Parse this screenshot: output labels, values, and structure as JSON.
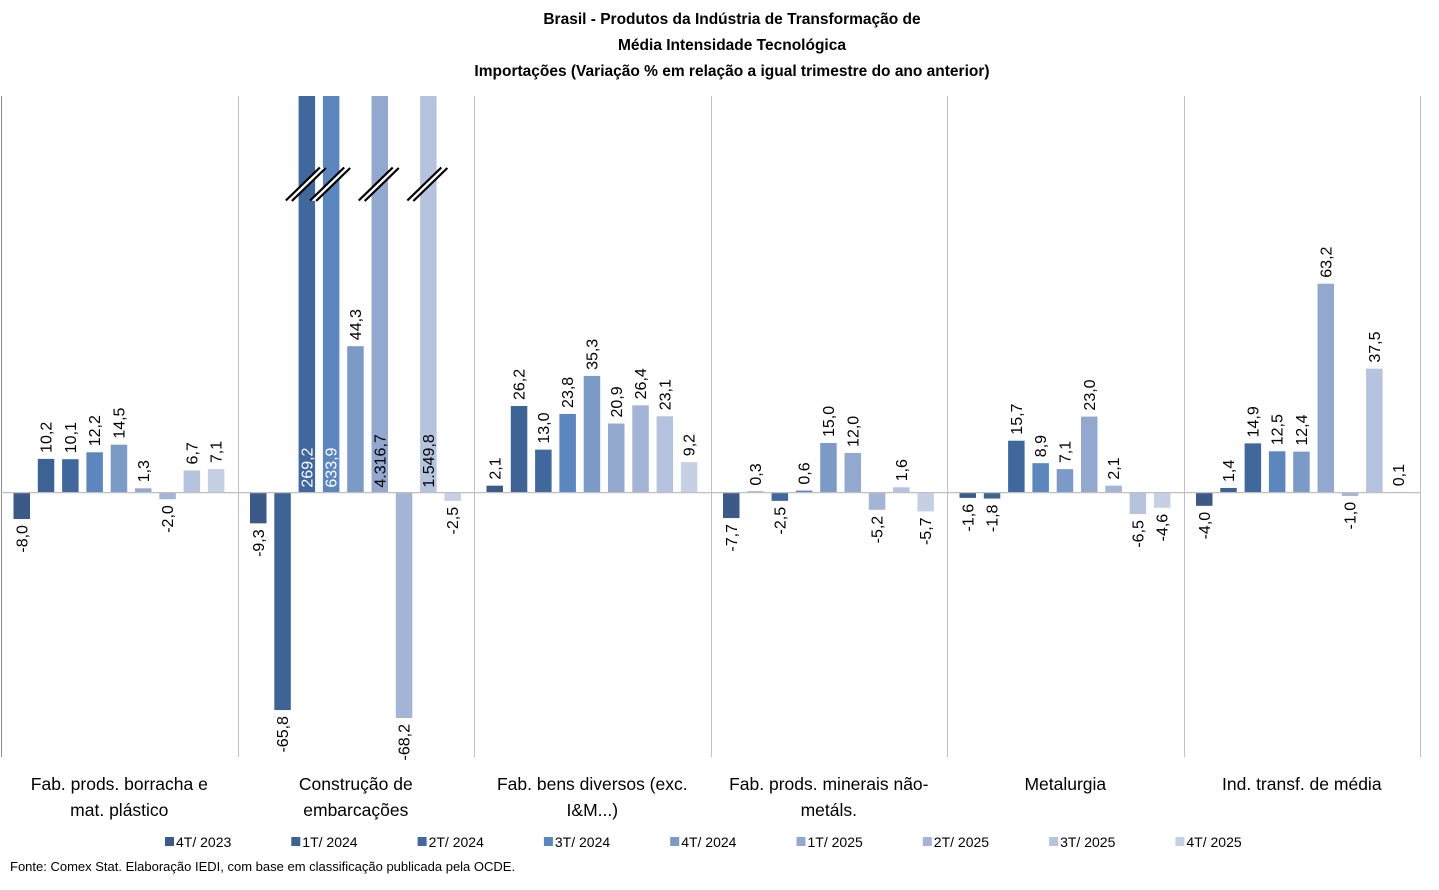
{
  "chart_data": {
    "type": "bar",
    "title_lines": [
      "Brasil - Produtos da Indústria de Transformação de",
      "Média Intensidade Tecnológica"
    ],
    "subtitle": "Importações (Variação % em relação a igual trimestre do ano anterior)",
    "xlabel": "",
    "ylabel": "",
    "ylim": [
      -80,
      120
    ],
    "grid": false,
    "legend": "bottom",
    "axis_break": "bars above 120 are truncated with break marks",
    "categories": [
      "Fab. prods. borracha e mat. plástico",
      "Construção de embarcações",
      "Fab. bens diversos (exc. I&M...)",
      "Fab. prods. minerais não-metáls.",
      "Metalurgia",
      "Ind. transf. de média"
    ],
    "tick_labels": [
      [
        "Fab. prods. borracha e",
        "mat. plástico"
      ],
      [
        "Construção de",
        "embarcações"
      ],
      [
        "Fab. bens diversos (exc.",
        "I&M...)"
      ],
      [
        "Fab. prods. minerais não-",
        "metáls."
      ],
      [
        "Metalurgia"
      ],
      [
        "Ind. transf. de média"
      ]
    ],
    "series": [
      {
        "name": "4T/ 2023",
        "color": "#3B5A87",
        "values": [
          -8.0,
          -9.3,
          2.1,
          -7.7,
          -1.6,
          -4.0
        ],
        "labels": [
          "-8,0",
          "-9,3",
          "2,1",
          "-7,7",
          "-1,6",
          "-4,0"
        ]
      },
      {
        "name": "1T/ 2024",
        "color": "#3D6395",
        "values": [
          10.2,
          -65.8,
          26.2,
          0.3,
          -1.8,
          1.4
        ],
        "labels": [
          "10,2",
          "-65,8",
          "26,2",
          "0,3",
          "-1,8",
          "1,4"
        ]
      },
      {
        "name": "2T/ 2024",
        "color": "#40689D",
        "values": [
          10.1,
          269.2,
          13.0,
          -2.5,
          15.7,
          14.9
        ],
        "labels": [
          "10,1",
          "269,2",
          "13,0",
          "-2,5",
          "15,7",
          "14,9"
        ]
      },
      {
        "name": "3T/ 2024",
        "color": "#5C86BE",
        "values": [
          12.2,
          633.9,
          23.8,
          0.6,
          8.9,
          12.5
        ],
        "labels": [
          "12,2",
          "633,9",
          "23,8",
          "0,6",
          "8,9",
          "12,5"
        ]
      },
      {
        "name": "4T/ 2024",
        "color": "#7B9AC6",
        "values": [
          14.5,
          44.3,
          35.3,
          15.0,
          7.1,
          12.4
        ],
        "labels": [
          "14,5",
          "44,3",
          "35,3",
          "15,0",
          "7,1",
          "12,4"
        ]
      },
      {
        "name": "1T/ 2025",
        "color": "#93A8CF",
        "values": [
          1.3,
          4316.7,
          20.9,
          12.0,
          23.0,
          63.2
        ],
        "labels": [
          "1,3",
          "4.316,7",
          "20,9",
          "12,0",
          "23,0",
          "63,2"
        ]
      },
      {
        "name": "2T/ 2025",
        "color": "#A3B4D6",
        "values": [
          -2.0,
          -68.2,
          26.4,
          -5.2,
          2.1,
          -1.0
        ],
        "labels": [
          "-2,0",
          "-68,2",
          "26,4",
          "-5,2",
          "2,1",
          "-1,0"
        ]
      },
      {
        "name": "3T/ 2025",
        "color": "#B5C3DF",
        "values": [
          6.7,
          1549.8,
          23.1,
          1.6,
          -6.5,
          37.5
        ],
        "labels": [
          "6,7",
          "1.549,8",
          "23,1",
          "1,6",
          "-6,5",
          "37,5"
        ]
      },
      {
        "name": "4T/ 2025",
        "color": "#C6D0E5",
        "values": [
          7.1,
          -2.5,
          9.2,
          -5.7,
          -4.6,
          0.1
        ],
        "labels": [
          "7,1",
          "-2,5",
          "9,2",
          "-5,7",
          "-4,6",
          "0,1"
        ]
      }
    ]
  },
  "source": "Fonte: Comex Stat. Elaboração IEDI, com base em classificação publicada pela OCDE."
}
